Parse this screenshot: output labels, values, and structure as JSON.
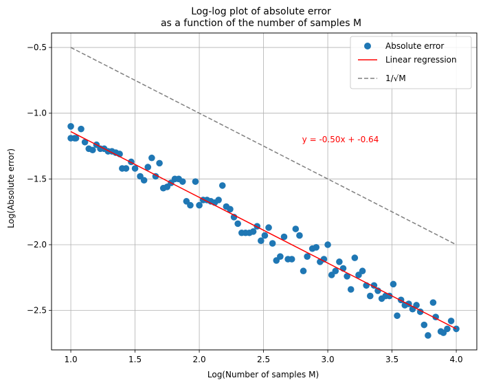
{
  "chart_data": {
    "type": "scatter",
    "title_lines": [
      "Log-log plot of absolute error",
      "as a function of the number of samples M"
    ],
    "xlabel": "Log(Number of samples M)",
    "ylabel": "Log(Absolute error)",
    "xlim": [
      0.85,
      4.16
    ],
    "ylim": [
      -2.8,
      -0.39
    ],
    "xticks": [
      1.0,
      1.5,
      2.0,
      2.5,
      3.0,
      3.5,
      4.0
    ],
    "xtick_labels": [
      "1.0",
      "1.5",
      "2.0",
      "2.5",
      "3.0",
      "3.5",
      "4.0"
    ],
    "yticks": [
      -0.5,
      -1.0,
      -1.5,
      -2.0,
      -2.5
    ],
    "ytick_labels": [
      "−0.5",
      "−1.0",
      "−1.5",
      "−2.0",
      "−2.5"
    ],
    "grid": true,
    "legend_position": "top-right",
    "annotation": {
      "text": "y = -0.50x + -0.64",
      "x": 2.8,
      "y": -1.2,
      "color": "#ff0000"
    },
    "series": [
      {
        "name": "Absolute error",
        "kind": "scatter",
        "color": "#1f77b4",
        "x": [
          1.0,
          1.0,
          1.03,
          1.04,
          1.08,
          1.11,
          1.14,
          1.17,
          1.2,
          1.23,
          1.26,
          1.29,
          1.32,
          1.35,
          1.38,
          1.4,
          1.43,
          1.47,
          1.5,
          1.54,
          1.57,
          1.6,
          1.63,
          1.66,
          1.69,
          1.72,
          1.75,
          1.78,
          1.81,
          1.84,
          1.87,
          1.9,
          1.93,
          1.97,
          2.0,
          2.03,
          2.06,
          2.09,
          2.12,
          2.15,
          2.18,
          2.21,
          2.24,
          2.27,
          2.3,
          2.33,
          2.36,
          2.39,
          2.42,
          2.45,
          2.48,
          2.51,
          2.54,
          2.57,
          2.6,
          2.63,
          2.66,
          2.69,
          2.72,
          2.75,
          2.78,
          2.81,
          2.84,
          2.88,
          2.91,
          2.94,
          2.97,
          3.0,
          3.03,
          3.06,
          3.09,
          3.12,
          3.15,
          3.18,
          3.21,
          3.24,
          3.27,
          3.3,
          3.33,
          3.36,
          3.39,
          3.42,
          3.45,
          3.48,
          3.51,
          3.54,
          3.57,
          3.6,
          3.63,
          3.66,
          3.69,
          3.72,
          3.75,
          3.78,
          3.82,
          3.84,
          3.88,
          3.9,
          3.93,
          3.96,
          4.0
        ],
        "y": [
          -1.1,
          -1.19,
          -1.19,
          -1.19,
          -1.12,
          -1.22,
          -1.27,
          -1.28,
          -1.24,
          -1.27,
          -1.27,
          -1.29,
          -1.29,
          -1.3,
          -1.31,
          -1.42,
          -1.42,
          -1.37,
          -1.42,
          -1.48,
          -1.51,
          -1.41,
          -1.34,
          -1.48,
          -1.38,
          -1.57,
          -1.56,
          -1.53,
          -1.5,
          -1.5,
          -1.52,
          -1.67,
          -1.7,
          -1.52,
          -1.7,
          -1.66,
          -1.66,
          -1.67,
          -1.68,
          -1.66,
          -1.55,
          -1.71,
          -1.73,
          -1.79,
          -1.84,
          -1.91,
          -1.91,
          -1.91,
          -1.9,
          -1.86,
          -1.97,
          -1.93,
          -1.87,
          -1.99,
          -2.12,
          -2.09,
          -1.94,
          -2.11,
          -2.11,
          -1.88,
          -1.93,
          -2.2,
          -2.09,
          -2.03,
          -2.02,
          -2.13,
          -2.11,
          -2.0,
          -2.23,
          -2.2,
          -2.13,
          -2.18,
          -2.24,
          -2.34,
          -2.1,
          -2.23,
          -2.2,
          -2.31,
          -2.39,
          -2.31,
          -2.35,
          -2.41,
          -2.39,
          -2.39,
          -2.3,
          -2.54,
          -2.42,
          -2.46,
          -2.45,
          -2.49,
          -2.46,
          -2.51,
          -2.61,
          -2.69,
          -2.44,
          -2.55,
          -2.66,
          -2.67,
          -2.64,
          -2.58,
          -2.64
        ]
      },
      {
        "name": "Linear regression",
        "kind": "line",
        "color": "#ff0000",
        "dash": "solid",
        "x": [
          1.0,
          4.0
        ],
        "y": [
          -1.14,
          -2.64
        ]
      },
      {
        "name": "1/√M",
        "kind": "line",
        "color": "#7f7f7f",
        "dash": "dashed",
        "x": [
          1.0,
          4.0
        ],
        "y": [
          -0.5,
          -2.0
        ]
      }
    ]
  }
}
